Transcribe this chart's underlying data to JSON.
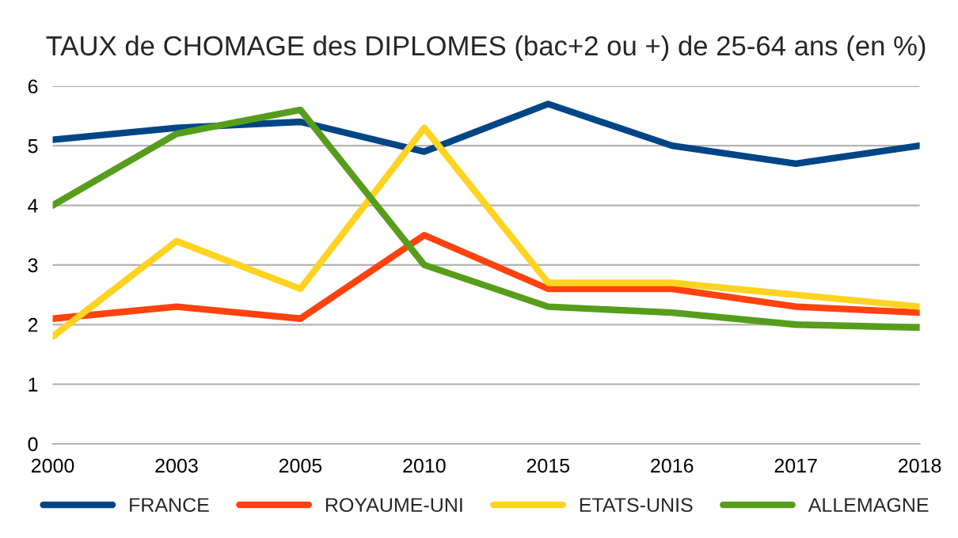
{
  "chart_data": {
    "type": "line",
    "title": "TAUX de CHOMAGE des DIPLOMES (bac+2 ou +) de 25-64 ans (en %)",
    "categories": [
      "2000",
      "2003",
      "2005",
      "2010",
      "2015",
      "2016",
      "2017",
      "2018"
    ],
    "series": [
      {
        "name": "FRANCE",
        "color": "#004586",
        "values": [
          5.1,
          5.3,
          5.4,
          4.9,
          5.7,
          5.0,
          4.7,
          5.0
        ]
      },
      {
        "name": "ROYAUME-UNI",
        "color": "#ff420e",
        "values": [
          2.1,
          2.3,
          2.1,
          3.5,
          2.6,
          2.6,
          2.3,
          2.2
        ]
      },
      {
        "name": "ETATS-UNIS",
        "color": "#ffd320",
        "values": [
          1.8,
          3.4,
          2.6,
          5.3,
          2.7,
          2.7,
          2.5,
          2.3
        ]
      },
      {
        "name": "ALLEMAGNE",
        "color": "#579d1c",
        "values": [
          4.0,
          5.2,
          5.6,
          3.0,
          2.3,
          2.2,
          2.0,
          1.95
        ]
      }
    ],
    "ylim": [
      0,
      6
    ],
    "yticks": [
      0,
      1,
      2,
      3,
      4,
      5,
      6
    ],
    "grid": "y",
    "legend": "bottom",
    "marker": "none",
    "line_style": "solid"
  }
}
